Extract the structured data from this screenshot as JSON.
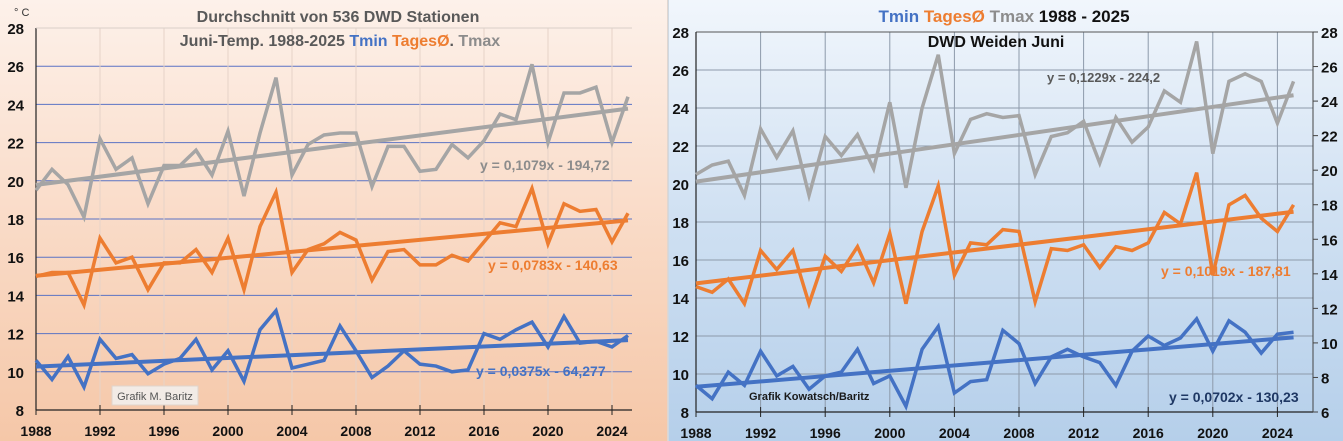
{
  "chart_data": [
    {
      "type": "line",
      "title": "Durchschnitt von 536 DWD Stationen",
      "subtitle": {
        "prefix": "Juni-Temp. 1988-2025",
        "tmin": "Tmin",
        "tages": "TagesØ",
        "sep": ".",
        "tmax": "Tmax"
      },
      "unit_label": "° C",
      "xlabel": "",
      "ylabel": "°C",
      "xlim": [
        1988,
        2026
      ],
      "ylim": [
        8,
        28
      ],
      "x_ticks": [
        1988,
        1992,
        1996,
        2000,
        2004,
        2008,
        2012,
        2016,
        2020,
        2024
      ],
      "y_ticks": [
        8,
        10,
        12,
        14,
        16,
        18,
        20,
        22,
        24,
        26,
        28
      ],
      "grid": true,
      "watermark": "Grafik M. Baritz",
      "x": [
        1988,
        1989,
        1990,
        1991,
        1992,
        1993,
        1994,
        1995,
        1996,
        1997,
        1998,
        1999,
        2000,
        2001,
        2002,
        2003,
        2004,
        2005,
        2006,
        2007,
        2008,
        2009,
        2010,
        2011,
        2012,
        2013,
        2014,
        2015,
        2016,
        2017,
        2018,
        2019,
        2020,
        2021,
        2022,
        2023,
        2024,
        2025
      ],
      "series": [
        {
          "name": "Tmax",
          "color": "#a5a5a5",
          "values": [
            19.5,
            20.6,
            19.8,
            18.1,
            22.2,
            20.6,
            21.2,
            18.8,
            20.8,
            20.8,
            21.6,
            20.3,
            22.6,
            19.2,
            22.5,
            25.4,
            20.3,
            21.9,
            22.4,
            22.5,
            22.5,
            19.7,
            21.8,
            21.8,
            20.5,
            20.6,
            21.9,
            21.2,
            22.1,
            23.5,
            23.2,
            26.1,
            22.0,
            24.6,
            24.6,
            24.9,
            22.0,
            24.4
          ],
          "trend": {
            "slope": 0.1079,
            "intercept": -194.72,
            "label": "y = 0,1079x - 194,72"
          }
        },
        {
          "name": "TagesØ",
          "color": "#ed7d31",
          "values": [
            15.0,
            15.2,
            15.2,
            13.5,
            17.0,
            15.7,
            16.0,
            14.3,
            15.7,
            15.7,
            16.4,
            15.2,
            17.0,
            14.3,
            17.6,
            19.4,
            15.2,
            16.4,
            16.7,
            17.3,
            16.9,
            14.8,
            16.3,
            16.4,
            15.6,
            15.6,
            16.1,
            15.8,
            16.8,
            17.8,
            17.6,
            19.6,
            16.7,
            18.8,
            18.4,
            18.5,
            16.8,
            18.3
          ],
          "trend": {
            "slope": 0.0783,
            "intercept": -140.63,
            "label": "y = 0,0783x - 140,63"
          }
        },
        {
          "name": "Tmin",
          "color": "#4472c4",
          "values": [
            10.6,
            9.6,
            10.8,
            9.2,
            11.7,
            10.7,
            10.9,
            9.9,
            10.4,
            10.7,
            11.7,
            10.1,
            11.1,
            9.5,
            12.2,
            13.2,
            10.2,
            10.4,
            10.6,
            12.4,
            11.1,
            9.7,
            10.3,
            11.1,
            10.4,
            10.3,
            10.0,
            10.1,
            12.0,
            11.7,
            12.2,
            12.6,
            11.3,
            12.9,
            11.5,
            11.6,
            11.3,
            11.9
          ],
          "trend": {
            "slope": 0.0375,
            "intercept": -64.277,
            "label": "y = 0,0375x - 64,277"
          }
        }
      ]
    },
    {
      "type": "line",
      "title": {
        "tmin": "Tmin",
        "tages": "TagesØ",
        "tmax": "Tmax",
        "years": "1988 - 2025"
      },
      "subtitle": "DWD Weiden Juni",
      "xlabel": "",
      "ylabel": "°C",
      "xlim": [
        1988,
        2026
      ],
      "ylim": [
        8,
        28
      ],
      "y2lim": [
        6,
        28
      ],
      "x_ticks": [
        1988,
        1992,
        1996,
        2000,
        2004,
        2008,
        2012,
        2016,
        2020,
        2024
      ],
      "y_ticks": [
        8,
        10,
        12,
        14,
        16,
        18,
        20,
        22,
        24,
        26,
        28
      ],
      "y2_ticks": [
        6,
        8,
        10,
        12,
        14,
        16,
        18,
        20,
        22,
        24,
        26,
        28
      ],
      "grid": true,
      "watermark": "Grafik Kowatsch/Baritz",
      "x": [
        1988,
        1989,
        1990,
        1991,
        1992,
        1993,
        1994,
        1995,
        1996,
        1997,
        1998,
        1999,
        2000,
        2001,
        2002,
        2003,
        2004,
        2005,
        2006,
        2007,
        2008,
        2009,
        2010,
        2011,
        2012,
        2013,
        2014,
        2015,
        2016,
        2017,
        2018,
        2019,
        2020,
        2021,
        2022,
        2023,
        2024,
        2025
      ],
      "series": [
        {
          "name": "Tmax",
          "color": "#a5a5a5",
          "values": [
            20.5,
            21.0,
            21.2,
            19.4,
            22.9,
            21.4,
            22.8,
            19.4,
            22.5,
            21.5,
            22.6,
            20.8,
            24.3,
            19.8,
            24.0,
            26.8,
            21.6,
            23.4,
            23.7,
            23.5,
            23.6,
            20.5,
            22.5,
            22.7,
            23.3,
            21.1,
            23.5,
            22.2,
            23.0,
            24.9,
            24.3,
            27.5,
            21.6,
            25.4,
            25.8,
            25.4,
            23.2,
            25.4
          ],
          "trend": {
            "slope": 0.1229,
            "intercept": -224.2,
            "label": "y = 0,1229x - 224,2"
          }
        },
        {
          "name": "TagesØ",
          "color": "#ed7d31",
          "values": [
            14.6,
            14.3,
            15.0,
            13.7,
            16.5,
            15.5,
            16.5,
            13.7,
            16.2,
            15.4,
            16.7,
            14.8,
            17.4,
            13.7,
            17.5,
            19.9,
            15.2,
            16.9,
            16.8,
            17.6,
            17.5,
            13.8,
            16.6,
            16.5,
            16.8,
            15.6,
            16.7,
            16.5,
            16.9,
            18.5,
            17.9,
            20.6,
            15.2,
            18.9,
            19.4,
            18.2,
            17.5,
            18.9
          ],
          "trend": {
            "slope": 0.1019,
            "intercept": -187.81,
            "label": "y = 0,1019x - 187,81"
          }
        },
        {
          "name": "Tmin",
          "color": "#4472c4",
          "values": [
            9.4,
            8.7,
            10.1,
            9.4,
            11.2,
            9.9,
            10.4,
            9.2,
            9.9,
            10.1,
            11.3,
            9.5,
            9.9,
            8.3,
            11.3,
            12.5,
            9.0,
            9.6,
            9.7,
            12.3,
            11.6,
            9.5,
            10.9,
            11.3,
            10.9,
            10.6,
            9.4,
            11.2,
            12.0,
            11.5,
            11.9,
            12.9,
            11.2,
            12.8,
            12.2,
            11.1,
            12.1,
            12.2
          ],
          "trend": {
            "slope": 0.0702,
            "intercept": -130.23,
            "label": "y = 0,0702x - 130,23"
          }
        }
      ]
    }
  ]
}
